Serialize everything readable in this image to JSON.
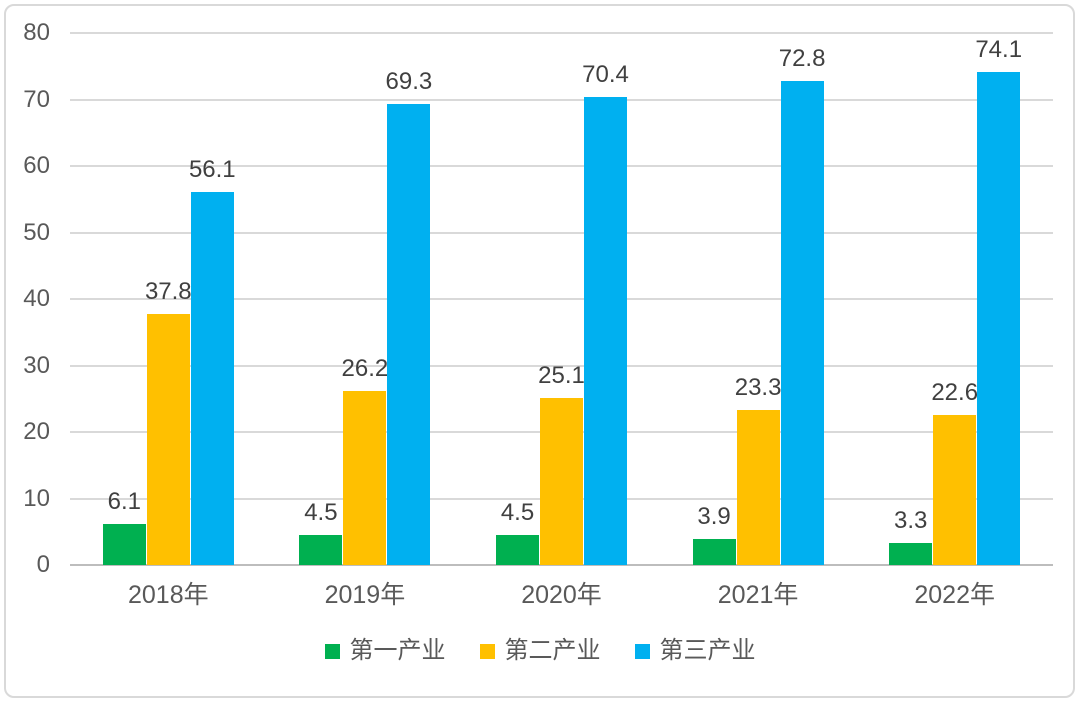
{
  "chart_data": {
    "type": "bar",
    "title": "",
    "xlabel": "",
    "ylabel": "",
    "categories": [
      "2018年",
      "2019年",
      "2020年",
      "2021年",
      "2022年"
    ],
    "series": [
      {
        "name": "第一产业",
        "color": "#00B050",
        "values": [
          6.1,
          4.5,
          4.5,
          3.9,
          3.3
        ]
      },
      {
        "name": "第二产业",
        "color": "#FFC000",
        "values": [
          37.8,
          26.2,
          25.1,
          23.3,
          22.6
        ]
      },
      {
        "name": "第三产业",
        "color": "#00B0F0",
        "values": [
          56.1,
          69.3,
          70.4,
          72.8,
          74.1
        ]
      }
    ],
    "ylim": [
      0,
      80
    ],
    "yticks": [
      0,
      10,
      20,
      30,
      40,
      50,
      60,
      70,
      80
    ],
    "grid": true,
    "data_labels": true,
    "legend_position": "bottom"
  },
  "colors": {
    "background": "#FFFFFF",
    "gridline": "#D9D9D9",
    "axis_line": "#BDBDBD",
    "tick_text": "#595959",
    "data_label_text": "#404040",
    "frame_border": "#D9D9D9"
  }
}
